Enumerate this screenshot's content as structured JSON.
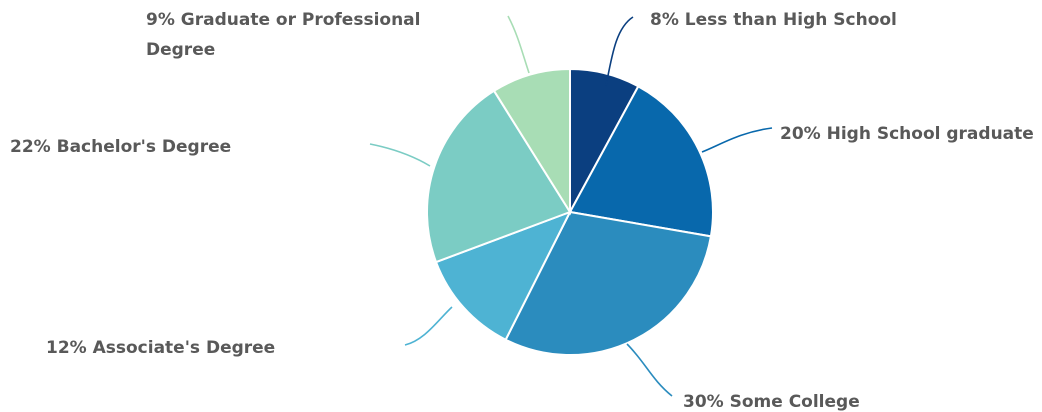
{
  "chart_data": {
    "type": "pie",
    "title": "",
    "start_angle_deg": 0,
    "direction": "clockwise",
    "legend": "none",
    "slices": [
      {
        "label": "Less than High School",
        "value": 8,
        "display": "8% Less than High School",
        "color": "#0b3f80"
      },
      {
        "label": "High School graduate",
        "value": 20,
        "display": "20% High School graduate",
        "color": "#0868ac"
      },
      {
        "label": "Some College",
        "value": 30,
        "display": "30% Some College",
        "color": "#2b8cbe"
      },
      {
        "label": "Associate's Degree",
        "value": 12,
        "display": "12% Associate's Degree",
        "color": "#4eb3d3"
      },
      {
        "label": "Bachelor's Degree",
        "value": 22,
        "display": "22% Bachelor's Degree",
        "color": "#7bccc4"
      },
      {
        "label": "Graduate or Professional Degree",
        "value": 9,
        "display": "9% Graduate or Professional Degree",
        "color": "#a8ddb5"
      }
    ]
  }
}
